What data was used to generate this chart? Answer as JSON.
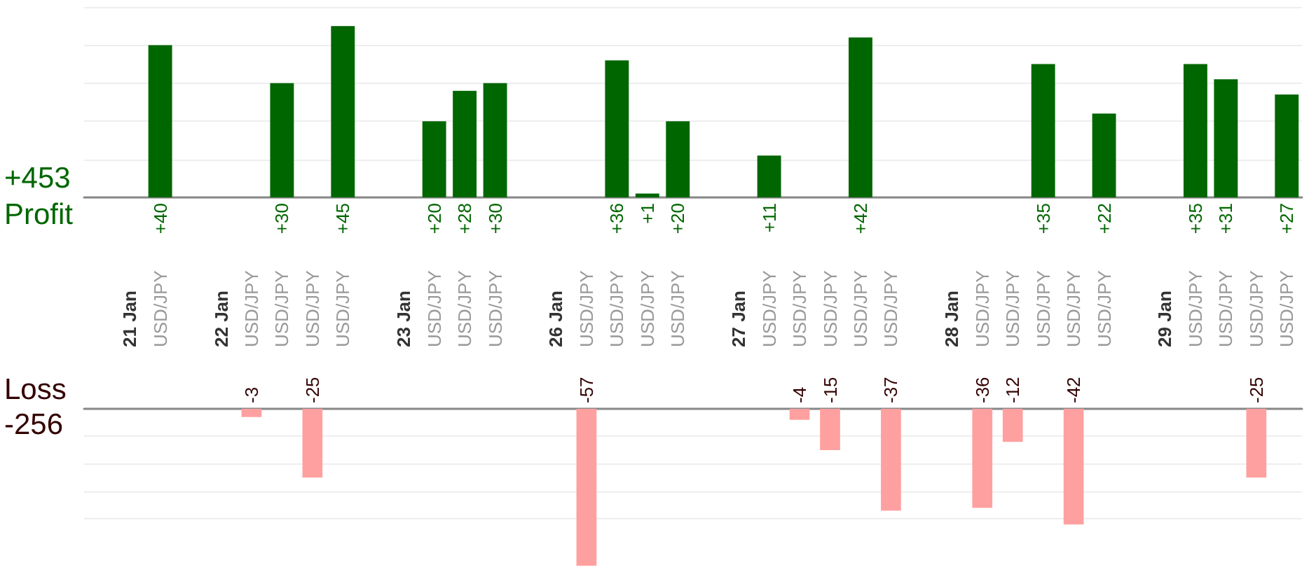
{
  "chart_data": [
    {
      "type": "bar",
      "ylabel": "Profit",
      "annotations": [
        "+453"
      ],
      "categories": [
        null,
        "21 Jan",
        "USD/JPY",
        null,
        "22 Jan",
        "USD/JPY",
        "USD/JPY",
        "USD/JPY",
        "USD/JPY",
        null,
        "23 Jan",
        "USD/JPY",
        "USD/JPY",
        "USD/JPY",
        null,
        "26 Jan",
        "USD/JPY",
        "USD/JPY",
        "USD/JPY",
        "USD/JPY",
        null,
        "27 Jan",
        "USD/JPY",
        "USD/JPY",
        "USD/JPY",
        "USD/JPY",
        "USD/JPY",
        null,
        "28 Jan",
        "USD/JPY",
        "USD/JPY",
        "USD/JPY",
        "USD/JPY",
        "USD/JPY",
        null,
        "29 Jan",
        "USD/JPY",
        "USD/JPY",
        "USD/JPY",
        "USD/JPY"
      ],
      "series": [
        {
          "color": "#006600",
          "values": [
            null,
            null,
            40,
            null,
            null,
            null,
            30,
            null,
            45,
            null,
            null,
            20,
            28,
            30,
            null,
            null,
            null,
            36,
            1,
            20,
            null,
            null,
            11,
            null,
            null,
            42,
            null,
            null,
            null,
            null,
            null,
            35,
            null,
            22,
            null,
            null,
            35,
            31,
            null,
            27
          ],
          "value_labels": [
            null,
            null,
            "+40",
            null,
            null,
            null,
            "+30",
            null,
            "+45",
            null,
            null,
            "+20",
            "+28",
            "+30",
            null,
            null,
            null,
            "+36",
            "+1",
            "+20",
            null,
            null,
            "+11",
            null,
            null,
            "+42",
            null,
            null,
            null,
            null,
            null,
            "+35",
            null,
            "+22",
            null,
            null,
            "+35",
            "+31",
            null,
            "+27"
          ]
        }
      ],
      "ylim": [
        0,
        50
      ],
      "yticks": [
        {
          "value": 0,
          "label": null
        },
        {
          "value": 10,
          "label": null
        },
        {
          "value": 20,
          "label": null
        },
        {
          "value": 30,
          "label": null
        },
        {
          "value": 40,
          "label": null
        },
        {
          "value": 50,
          "label": null
        }
      ],
      "grid": "y",
      "tick_labels": "x"
    },
    {
      "type": "bar",
      "ylabel": "Loss",
      "annotations": [
        "-256"
      ],
      "series": [
        {
          "color": "#ffa0a0",
          "values": [
            null,
            null,
            null,
            null,
            null,
            -3,
            null,
            -25,
            null,
            null,
            null,
            null,
            null,
            null,
            null,
            null,
            -57,
            null,
            null,
            null,
            null,
            null,
            null,
            -4,
            -15,
            null,
            -37,
            null,
            null,
            -36,
            -12,
            null,
            -42,
            null,
            null,
            null,
            null,
            null,
            -25,
            null
          ]
        }
      ],
      "data_labels": true,
      "yticks": [
        {
          "value": -40,
          "label": null
        },
        {
          "value": -30,
          "label": null
        },
        {
          "value": -20,
          "label": null
        },
        {
          "value": -10,
          "label": null
        },
        {
          "value": 0,
          "label": null
        }
      ],
      "grid": "y",
      "tick_labels": false
    }
  ]
}
